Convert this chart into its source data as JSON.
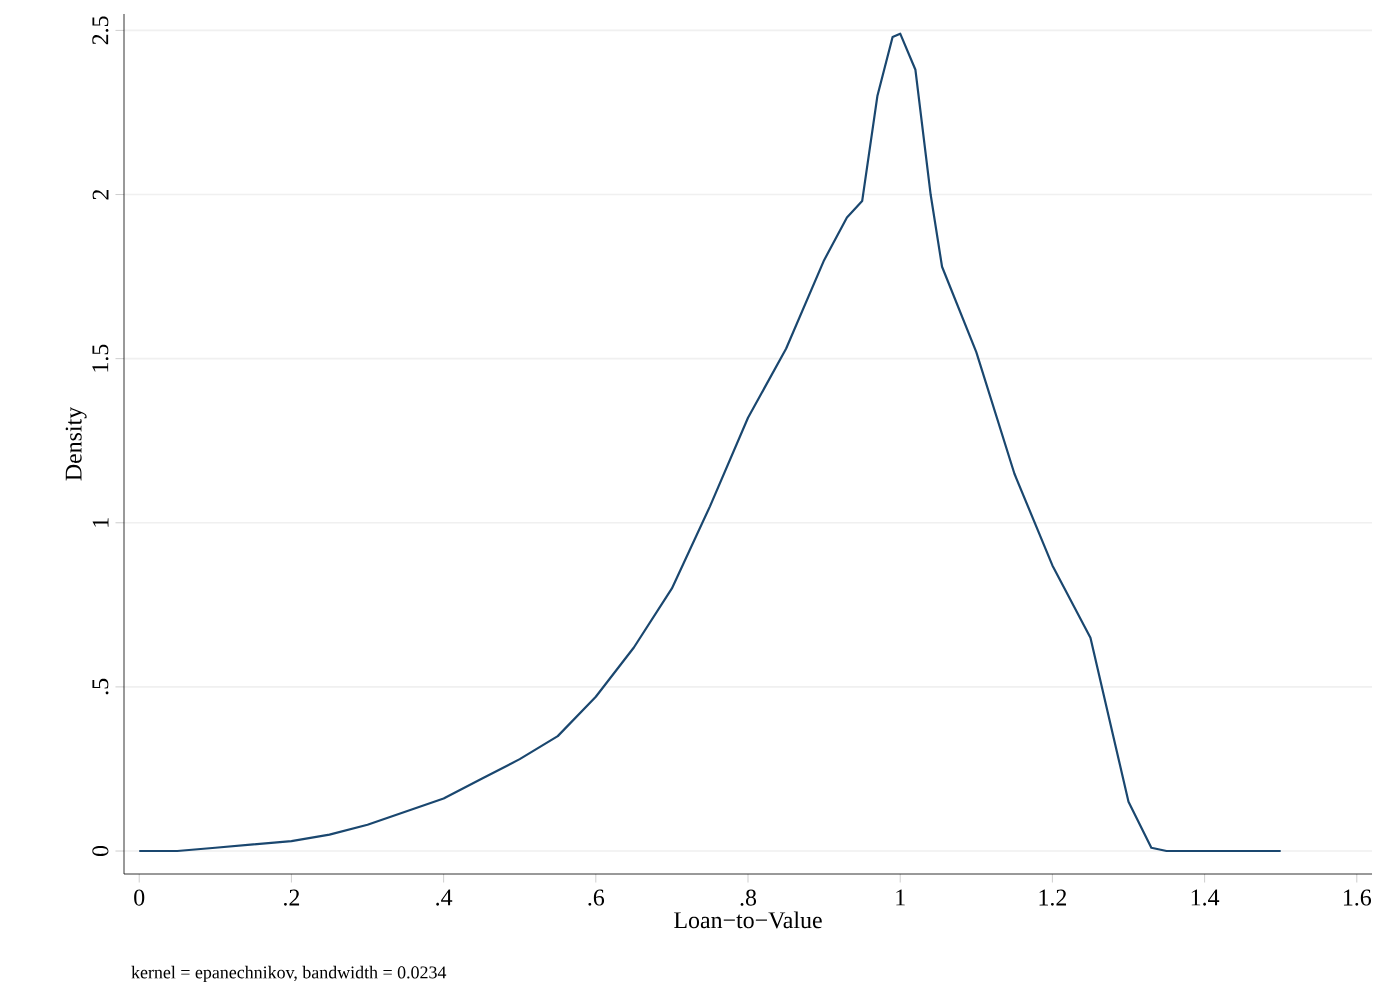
{
  "chart_data": {
    "type": "line",
    "xlabel": "Loan−to−Value",
    "ylabel": "Density",
    "annotations": [
      "kernel = epanechnikov, bandwidth = 0.0234"
    ],
    "x": [
      0,
      0.05,
      0.1,
      0.15,
      0.2,
      0.25,
      0.3,
      0.35,
      0.4,
      0.45,
      0.5,
      0.55,
      0.6,
      0.65,
      0.7,
      0.75,
      0.8,
      0.85,
      0.9,
      0.93,
      0.95,
      0.97,
      0.99,
      1.0,
      1.02,
      1.04,
      1.055,
      1.1,
      1.15,
      1.2,
      1.25,
      1.28,
      1.3,
      1.33,
      1.35,
      1.5
    ],
    "series": [
      {
        "color": "#1a476f",
        "values": [
          0,
          0,
          0.01,
          0.02,
          0.03,
          0.05,
          0.08,
          0.12,
          0.16,
          0.22,
          0.28,
          0.35,
          0.47,
          0.62,
          0.8,
          1.05,
          1.32,
          1.53,
          1.8,
          1.93,
          1.98,
          2.3,
          2.48,
          2.49,
          2.38,
          2.0,
          1.78,
          1.52,
          1.15,
          0.87,
          0.65,
          0.35,
          0.15,
          0.01,
          0,
          0
        ]
      }
    ],
    "xlim": [
      -0.02,
      1.62
    ],
    "ylim": [
      -0.07,
      2.55
    ],
    "xticks": [
      {
        "value": 0,
        "label": "0"
      },
      {
        "value": 0.2,
        "label": ".2"
      },
      {
        "value": 0.4,
        "label": ".4"
      },
      {
        "value": 0.6,
        "label": ".6"
      },
      {
        "value": 0.8,
        "label": ".8"
      },
      {
        "value": 1,
        "label": "1"
      },
      {
        "value": 1.2,
        "label": "1.2"
      },
      {
        "value": 1.4,
        "label": "1.4"
      },
      {
        "value": 1.6,
        "label": "1.6"
      }
    ],
    "yticks": [
      {
        "value": 0,
        "label": "0"
      },
      {
        "value": 0.5,
        "label": ".5"
      },
      {
        "value": 1,
        "label": "1"
      },
      {
        "value": 1.5,
        "label": "1.5"
      },
      {
        "value": 2,
        "label": "2"
      },
      {
        "value": 2.5,
        "label": "2.5"
      }
    ],
    "grid": "y",
    "marker": "none",
    "line_style": "solid"
  }
}
